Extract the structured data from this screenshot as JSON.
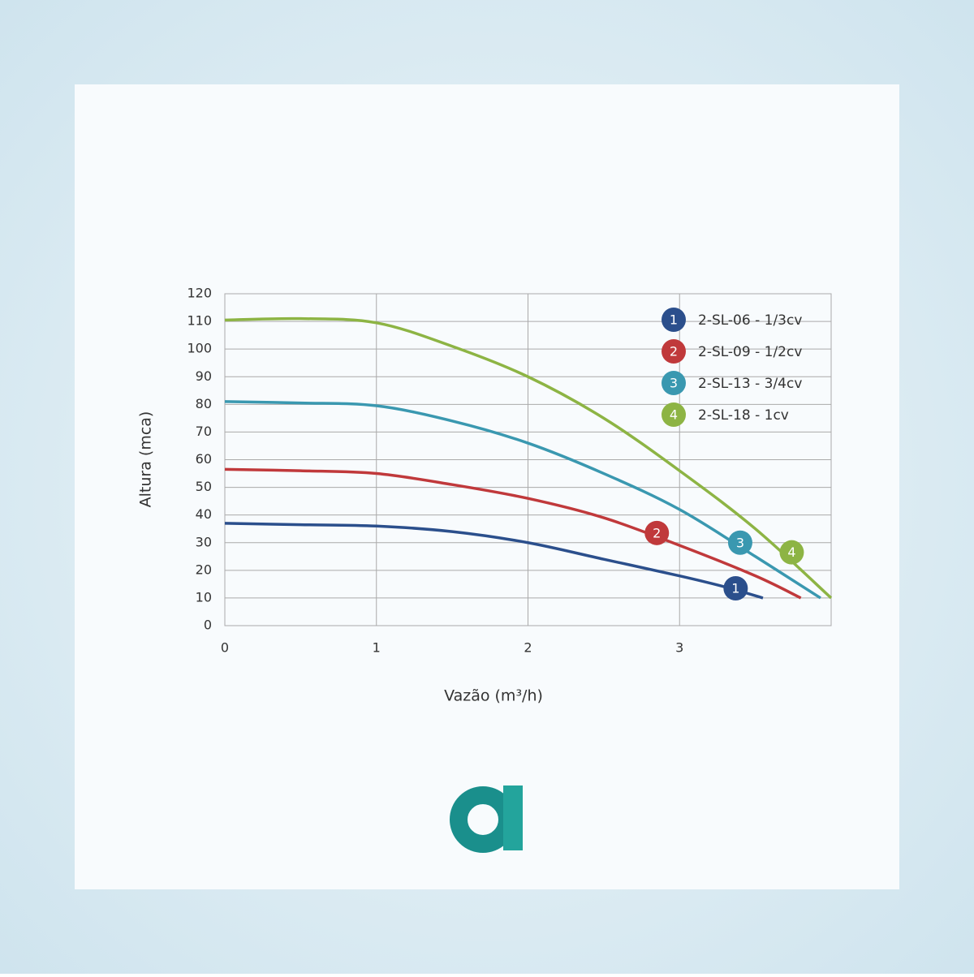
{
  "chart_data": {
    "type": "line",
    "x_label": "Vazão (m³/h)",
    "y_label": "Altura (mca)",
    "xlim": [
      0,
      4
    ],
    "xticks": [
      0,
      1,
      2,
      3
    ],
    "ylim": [
      0,
      120
    ],
    "yticks": [
      0,
      10,
      20,
      30,
      40,
      50,
      60,
      70,
      80,
      90,
      100,
      110,
      120
    ],
    "grid": true,
    "legend": "top-right",
    "series": [
      {
        "name": "2-SL-06 - 1/3cv",
        "label": "1",
        "color": "#2b4f8c",
        "x": [
          0,
          0.5,
          1,
          1.5,
          2,
          2.5,
          3,
          3.3,
          3.55
        ],
        "values": [
          37,
          36.5,
          36,
          34,
          30,
          24,
          18,
          14,
          10
        ],
        "label_x": 3.37,
        "label_y": 13.5
      },
      {
        "name": "2-SL-09 - 1/2cv",
        "label": "2",
        "color": "#c0393b",
        "x": [
          0,
          0.5,
          1,
          1.5,
          2,
          2.5,
          3,
          3.5,
          3.8
        ],
        "values": [
          56.5,
          56,
          55,
          51,
          46,
          39,
          29,
          18,
          10
        ],
        "label_x": 2.85,
        "label_y": 33.5
      },
      {
        "name": "2-SL-13 - 3/4cv",
        "label": "3",
        "color": "#3a98b0",
        "x": [
          0,
          0.5,
          1,
          1.5,
          2,
          2.5,
          3,
          3.5,
          3.93
        ],
        "values": [
          81,
          80.5,
          79.5,
          74,
          66,
          55,
          42,
          25,
          10
        ],
        "label_x": 3.4,
        "label_y": 30
      },
      {
        "name": "2-SL-18 - 1cv",
        "label": "4",
        "color": "#8db444",
        "x": [
          0,
          0.5,
          1,
          1.5,
          2,
          2.5,
          3,
          3.5,
          4
        ],
        "values": [
          110.5,
          111,
          109.5,
          101,
          90,
          75,
          56,
          35,
          10
        ],
        "label_x": 3.74,
        "label_y": 26.5
      }
    ]
  }
}
